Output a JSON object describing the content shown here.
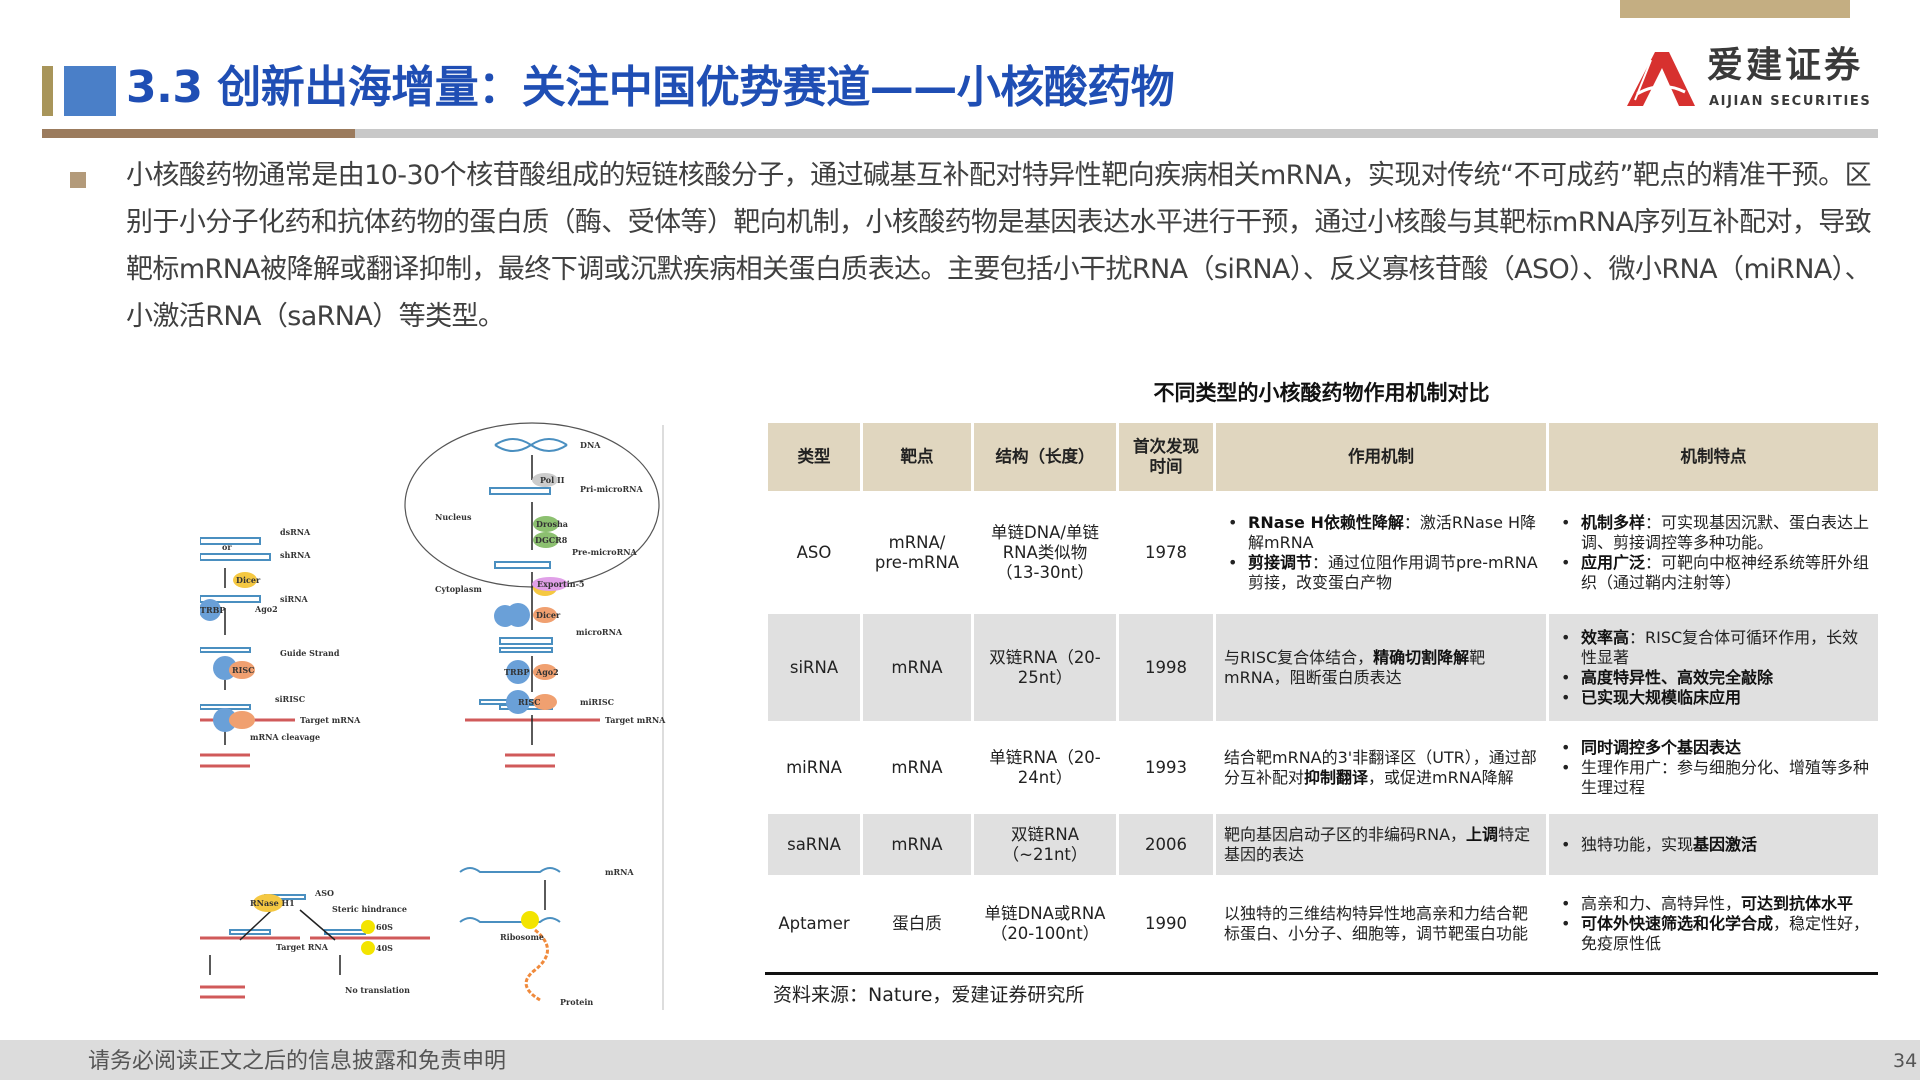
{
  "header": {
    "title": "3.3 创新出海增量：关注中国优势赛道——小核酸药物",
    "logo_cn": "爱建证券",
    "logo_en": "AIJIAN SECURITIES"
  },
  "colors": {
    "title": "#1f4eb4",
    "accent_blue": "#4a7fc8",
    "gold": "#c4ae82",
    "brown": "#9b7b5d",
    "table_header": "#e0d6bf",
    "row_shade": "#e0e0e0",
    "logo_red": "#d7312f"
  },
  "intro": "小核酸药物通常是由10-30个核苷酸组成的短链核酸分子，通过碱基互补配对特异性靶向疾病相关mRNA，实现对传统“不可成药”靶点的精准干预。区别于小分子化药和抗体药物的蛋白质（酶、受体等）靶向机制，小核酸药物是基因表达水平进行干预，通过小核酸与其靶标mRNA序列互补配对，导致靶标mRNA被降解或翻译抑制，最终下调或沉默疾病相关蛋白质表达。主要包括小干扰RNA（siRNA）、反义寡核苷酸（ASO）、微小RNA（miRNA）、小激活RNA（saRNA）等类型。",
  "table": {
    "title": "不同类型的小核酸药物作用机制对比",
    "headers": [
      "类型",
      "靶点",
      "结构（长度）",
      "首次发现时间",
      "作用机制",
      "机制特点"
    ],
    "rows": [
      {
        "type": "ASO",
        "target": "mRNA/ pre-mRNA",
        "structure": "单链DNA/单链RNA类似物（13-30nt）",
        "year": "1978",
        "mechanism": {
          "bullets": true,
          "items": [
            [
              {
                "t": "RNase H依赖性降解",
                "b": true
              },
              {
                "t": "：激活RNase H降解mRNA"
              }
            ],
            [
              {
                "t": "剪接调节",
                "b": true
              },
              {
                "t": "：通过位阻作用调节pre-mRNA剪接，改变蛋白产物"
              }
            ]
          ]
        },
        "features": {
          "bullets": true,
          "items": [
            [
              {
                "t": "机制多样",
                "b": true
              },
              {
                "t": "：可实现基因沉默、蛋白表达上调、剪接调控等多种功能。"
              }
            ],
            [
              {
                "t": "应用广泛",
                "b": true
              },
              {
                "t": "：可靶向中枢神经系统等肝外组织（通过鞘内注射等）"
              }
            ]
          ]
        }
      },
      {
        "type": "siRNA",
        "target": "mRNA",
        "structure": "双链RNA（20-25nt）",
        "year": "1998",
        "mechanism": {
          "bullets": false,
          "items": [
            [
              {
                "t": "与RISC复合体结合，"
              },
              {
                "t": "精确切割降解",
                "b": true
              },
              {
                "t": "靶mRNA，阻断蛋白质表达"
              }
            ]
          ]
        },
        "features": {
          "bullets": true,
          "items": [
            [
              {
                "t": "效率高",
                "b": true
              },
              {
                "t": "：RISC复合体可循环作用，长效性显著"
              }
            ],
            [
              {
                "t": "高度特异性、高效完全敲除",
                "b": true
              }
            ],
            [
              {
                "t": "已实现大规模临床应用",
                "b": true
              }
            ]
          ]
        }
      },
      {
        "type": "miRNA",
        "target": "mRNA",
        "structure": "单链RNA（20-24nt）",
        "year": "1993",
        "mechanism": {
          "bullets": false,
          "items": [
            [
              {
                "t": "结合靶mRNA的3'非翻译区（UTR），通过部分互补配对"
              },
              {
                "t": "抑制翻译",
                "b": true
              },
              {
                "t": "，或促进mRNA降解"
              }
            ]
          ]
        },
        "features": {
          "bullets": true,
          "items": [
            [
              {
                "t": "同时调控多个基因表达",
                "b": true
              }
            ],
            [
              {
                "t": "生理作用广：参与细胞分化、增殖等多种生理过程"
              }
            ]
          ]
        }
      },
      {
        "type": "saRNA",
        "target": "mRNA",
        "structure": "双链RNA（~21nt）",
        "year": "2006",
        "mechanism": {
          "bullets": false,
          "items": [
            [
              {
                "t": "靶向基因启动子区的非编码RNA，"
              },
              {
                "t": "上调",
                "b": true
              },
              {
                "t": "特定基因的表达"
              }
            ]
          ]
        },
        "features": {
          "bullets": true,
          "items": [
            [
              {
                "t": "独特功能，实现"
              },
              {
                "t": "基因激活",
                "b": true
              }
            ]
          ]
        }
      },
      {
        "type": "Aptamer",
        "target": "蛋白质",
        "structure": "单链DNA或RNA（20-100nt）",
        "year": "1990",
        "mechanism": {
          "bullets": false,
          "items": [
            [
              {
                "t": "以独特的三维结构特异性地高亲和力结合靶标蛋白、小分子、细胞等，调节靶蛋白功能"
              }
            ]
          ]
        },
        "features": {
          "bullets": true,
          "items": [
            [
              {
                "t": "高亲和力、高特异性，"
              },
              {
                "t": "可达到抗体水平",
                "b": true
              }
            ],
            [
              {
                "t": "可体外快速筛选和化学合成",
                "b": true
              },
              {
                "t": "，稳定性好，免疫原性低"
              }
            ]
          ]
        }
      }
    ],
    "source": "资料来源：Nature，爱建证券研究所"
  },
  "diagram": {
    "labels": {
      "dna": "DNA",
      "pol": "Pol II",
      "pri": "Pri-microRNA",
      "nucleus": "Nucleus",
      "drosha": "Drosha",
      "dgcr": "DGCR8",
      "pre": "Pre-microRNA",
      "exportin": "Exportin-5",
      "cytoplasm": "Cytoplasm",
      "dicer": "Dicer",
      "microrna": "microRNA",
      "trbp": "TRBP",
      "ago": "Ago2",
      "risc": "RISC",
      "mirisc": "miRISC",
      "target": "Target mRNA",
      "dsrna": "dsRNA",
      "or": "or",
      "shrna": "shRNA",
      "sirna": "siRNA",
      "guide": "Guide Strand",
      "sirisc": "siRISC",
      "cleavage": "mRNA cleavage",
      "aso": "ASO",
      "rnaseh": "RNase H1",
      "steric": "Steric hindrance",
      "targetrna": "Target RNA",
      "s60": "60S",
      "s40": "40S",
      "notrans": "No translation",
      "mrna": "mRNA",
      "ribosome": "Ribosome",
      "protein": "Protein"
    }
  },
  "footer": {
    "disclaimer": "请务必阅读正文之后的信息披露和免责申明",
    "page": "34"
  }
}
